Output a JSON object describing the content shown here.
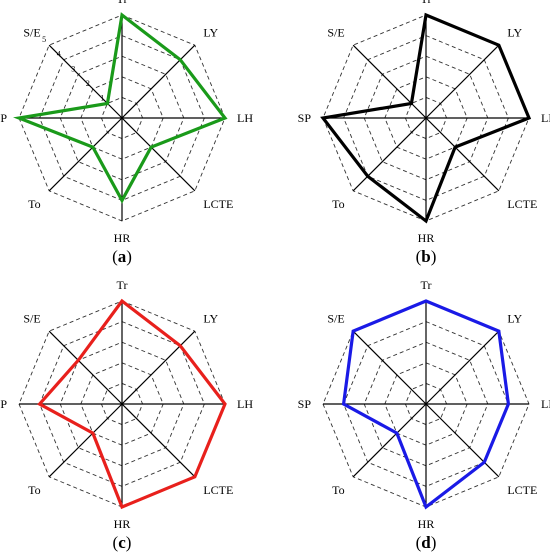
{
  "chart_data": [
    {
      "type": "radar",
      "panel_label": "a",
      "axes": [
        "Tr",
        "LY",
        "LH",
        "LCTE",
        "HR",
        "To",
        "SP",
        "S/E"
      ],
      "rlim": [
        0,
        5
      ],
      "ticks": [
        "1",
        "2",
        "3",
        "4",
        "5"
      ],
      "show_ticks": true,
      "grid": true,
      "series": [
        {
          "values": [
            5,
            4,
            5,
            2,
            4,
            2,
            5,
            1
          ],
          "color": "#1a9a1a"
        }
      ]
    },
    {
      "type": "radar",
      "panel_label": "b",
      "axes": [
        "Tr",
        "LY",
        "LH",
        "LCTE",
        "HR",
        "To",
        "SP",
        "S/E"
      ],
      "rlim": [
        0,
        5
      ],
      "ticks": [
        "1",
        "2",
        "3",
        "4",
        "5"
      ],
      "show_ticks": false,
      "grid": true,
      "series": [
        {
          "values": [
            5,
            5,
            5,
            2,
            5,
            4,
            5,
            1
          ],
          "color": "#000000"
        }
      ]
    },
    {
      "type": "radar",
      "panel_label": "c",
      "axes": [
        "Tr",
        "LY",
        "LH",
        "LCTE",
        "HR",
        "To",
        "SP",
        "S/E"
      ],
      "rlim": [
        0,
        5
      ],
      "ticks": [
        "1",
        "2",
        "3",
        "4",
        "5"
      ],
      "show_ticks": false,
      "grid": true,
      "series": [
        {
          "values": [
            5,
            4,
            5,
            5,
            5,
            2,
            4,
            3
          ],
          "color": "#e8201c"
        }
      ]
    },
    {
      "type": "radar",
      "panel_label": "d",
      "axes": [
        "Tr",
        "LY",
        "LH",
        "LCTE",
        "HR",
        "To",
        "SP",
        "S/E"
      ],
      "rlim": [
        0,
        5
      ],
      "ticks": [
        "1",
        "2",
        "3",
        "4",
        "5"
      ],
      "show_ticks": false,
      "grid": true,
      "series": [
        {
          "values": [
            5,
            5,
            4,
            4,
            5,
            2,
            4,
            5
          ],
          "color": "#1a1ae6"
        }
      ]
    }
  ]
}
